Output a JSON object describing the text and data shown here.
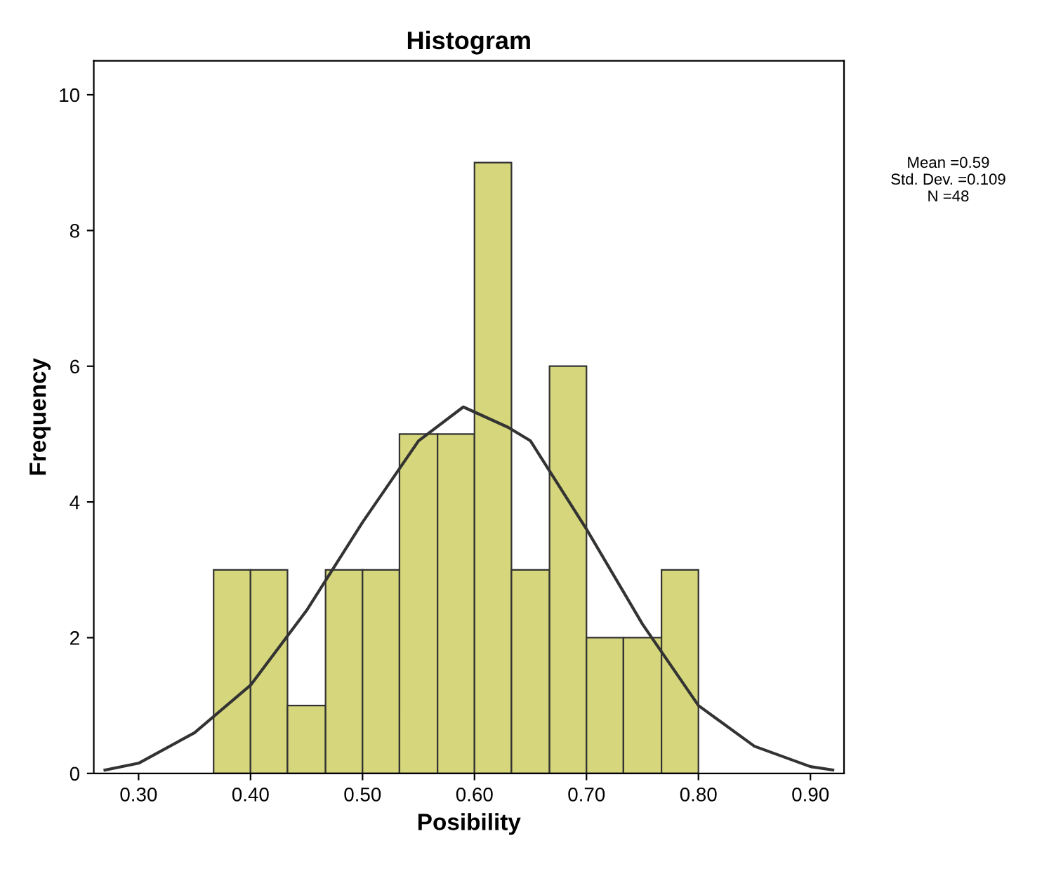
{
  "chart_data": {
    "type": "histogram",
    "title": "Histogram",
    "xlabel": "Posibility",
    "ylabel": "Frequency",
    "bins": [
      0.367,
      0.4,
      0.433,
      0.467,
      0.5,
      0.533,
      0.567,
      0.6,
      0.633,
      0.667,
      0.7,
      0.733,
      0.767,
      0.8
    ],
    "values": [
      3,
      3,
      1,
      3,
      3,
      5,
      5,
      9,
      3,
      6,
      2,
      2,
      3
    ],
    "color": "#d6d67c",
    "series": [
      {
        "type": "line",
        "color": "#333333",
        "x": [
          0.27,
          0.3,
          0.35,
          0.4,
          0.45,
          0.5,
          0.55,
          0.59,
          0.63,
          0.65,
          0.7,
          0.75,
          0.8,
          0.85,
          0.9,
          0.92
        ],
        "values": [
          0.05,
          0.15,
          0.6,
          1.3,
          2.4,
          3.7,
          4.9,
          5.4,
          5.1,
          4.9,
          3.6,
          2.2,
          1.0,
          0.4,
          0.1,
          0.05
        ]
      }
    ],
    "xlim": [
      0.26,
      0.93
    ],
    "xticks": [
      {
        "value": 0.3,
        "label": "0.30"
      },
      {
        "value": 0.4,
        "label": "0.40"
      },
      {
        "value": 0.5,
        "label": "0.50"
      },
      {
        "value": 0.6,
        "label": "0.60"
      },
      {
        "value": 0.7,
        "label": "0.70"
      },
      {
        "value": 0.8,
        "label": "0.80"
      },
      {
        "value": 0.9,
        "label": "0.90"
      }
    ],
    "ylim": [
      0,
      10.5
    ],
    "yticks": [
      0,
      2,
      4,
      6,
      8,
      10
    ],
    "grid": false,
    "annotations": [
      "Mean =0.59\nStd. Dev. =0.109\nN =48"
    ]
  }
}
